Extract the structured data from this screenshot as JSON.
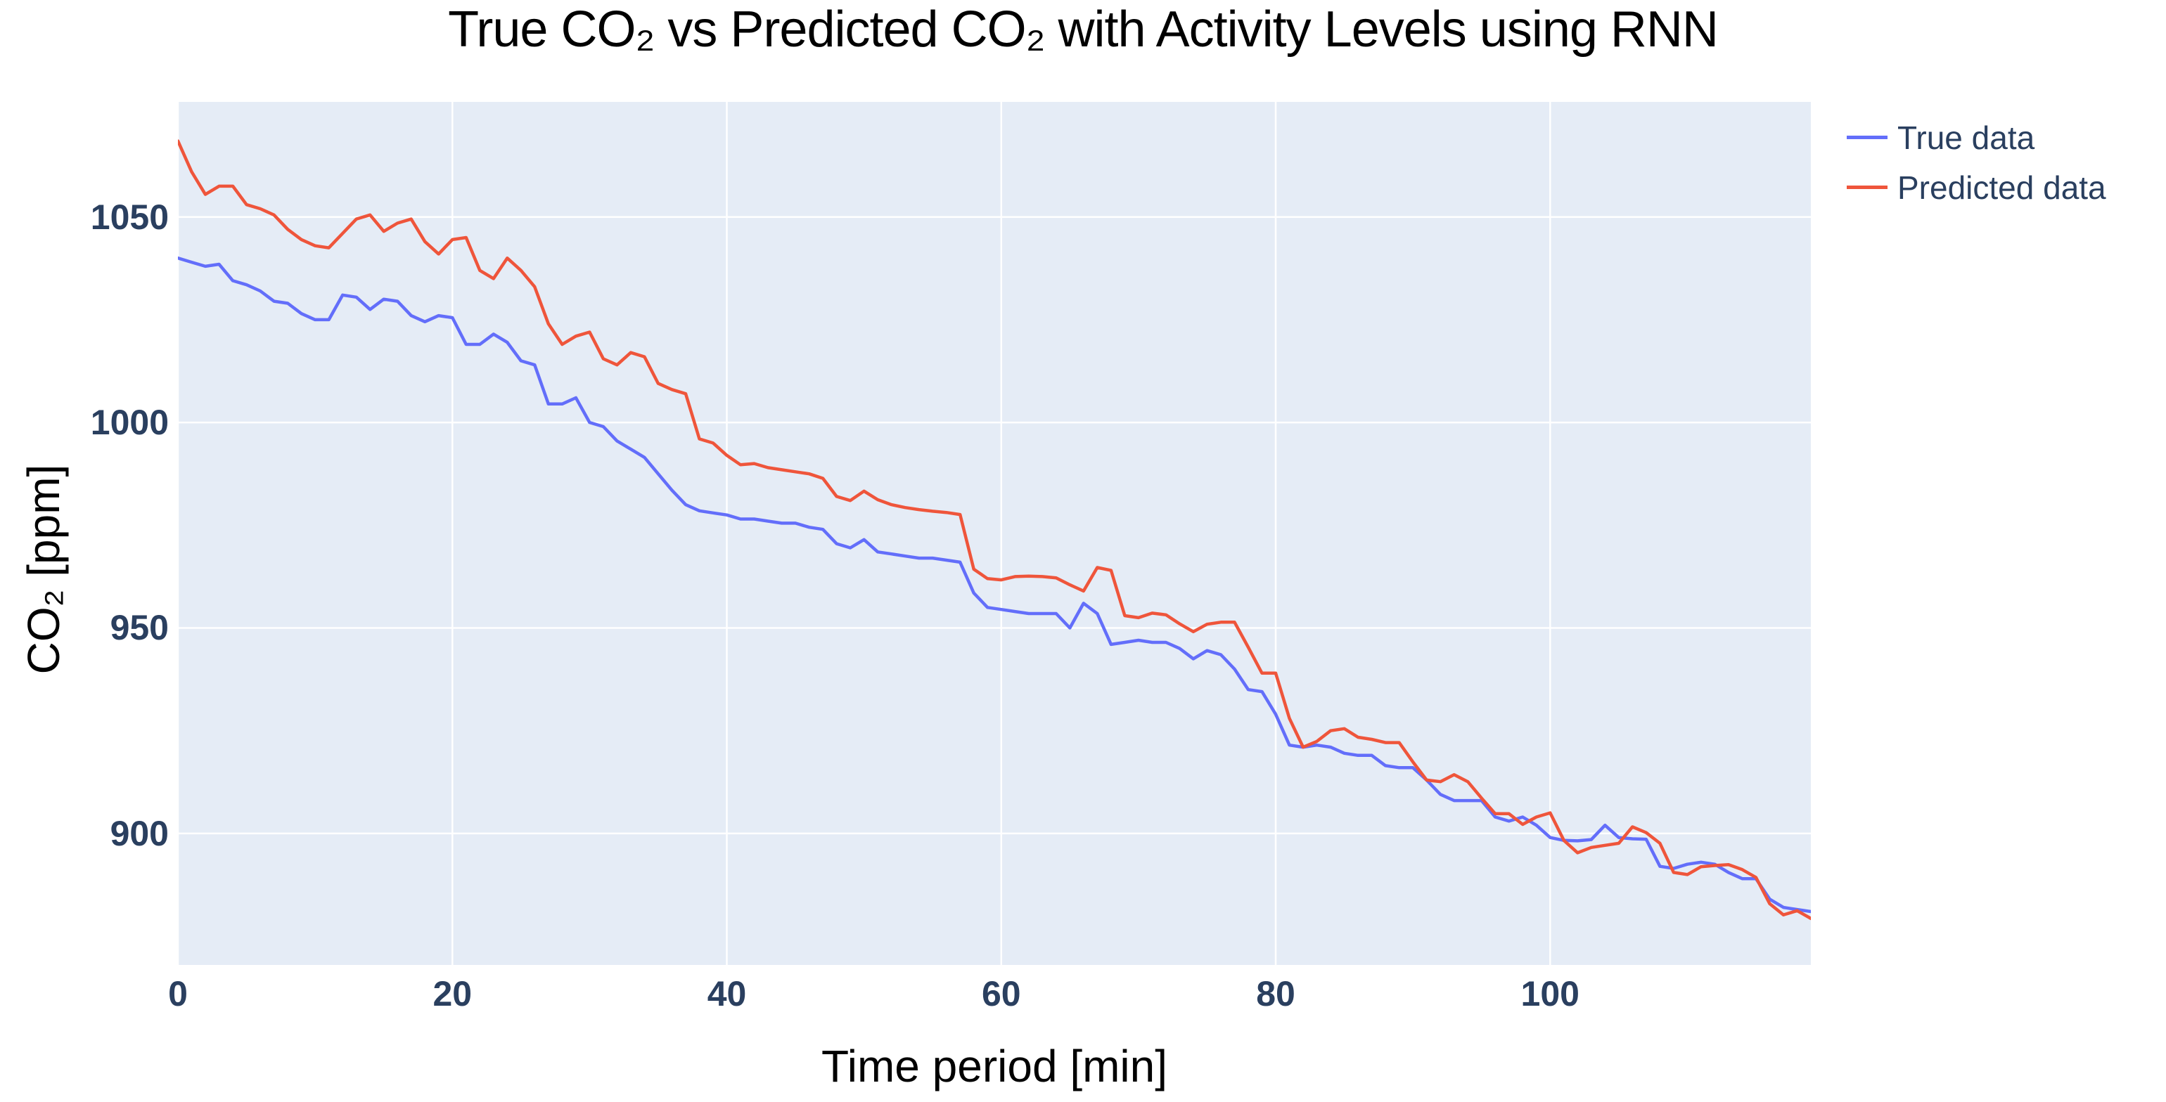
{
  "title": "True CO₂ vs Predicted CO₂ with Activity Levels using RNN",
  "colors": {
    "plot_bg": "#E5ECF6",
    "grid": "#FFFFFF",
    "tick_text": "#2A3F5F",
    "legend_text": "#2A3F5F",
    "title_text": "#000000",
    "true_line": "#636EFA",
    "predicted_line": "#EF553B"
  },
  "legend": {
    "position": "top-right-outside",
    "items": [
      {
        "label": "True data",
        "color": "#636EFA"
      },
      {
        "label": "Predicted data",
        "color": "#EF553B"
      }
    ]
  },
  "chart_data": {
    "type": "line",
    "title": "True CO₂ vs Predicted CO₂ with Activity Levels using RNN",
    "xlabel": "Time period [min]",
    "ylabel": "CO₂ [ppm]",
    "xlim": [
      0,
      119
    ],
    "ylim": [
      868,
      1078
    ],
    "xticks": [
      0,
      20,
      40,
      60,
      80,
      100
    ],
    "yticks": [
      900,
      950,
      1000,
      1050
    ],
    "grid": true,
    "legend_position": "top-right-outside",
    "x": [
      0,
      1,
      2,
      3,
      4,
      5,
      6,
      7,
      8,
      9,
      10,
      11,
      12,
      13,
      14,
      15,
      16,
      17,
      18,
      19,
      20,
      21,
      22,
      23,
      24,
      25,
      26,
      27,
      28,
      29,
      30,
      31,
      32,
      33,
      34,
      35,
      36,
      37,
      38,
      39,
      40,
      41,
      42,
      43,
      44,
      45,
      46,
      47,
      48,
      49,
      50,
      51,
      52,
      53,
      54,
      55,
      56,
      57,
      58,
      59,
      60,
      61,
      62,
      63,
      64,
      65,
      66,
      67,
      68,
      69,
      70,
      71,
      72,
      73,
      74,
      75,
      76,
      77,
      78,
      79,
      80,
      81,
      82,
      83,
      84,
      85,
      86,
      87,
      88,
      89,
      90,
      91,
      92,
      93,
      94,
      95,
      96,
      97,
      98,
      99,
      100,
      101,
      102,
      103,
      104,
      105,
      106,
      107,
      108,
      109,
      110,
      111,
      112,
      113,
      114,
      115,
      116,
      117,
      118,
      119
    ],
    "series": [
      {
        "name": "True data",
        "color": "#636EFA",
        "values": [
          1040,
          1039,
          1038,
          1038.5,
          1034.5,
          1033.5,
          1032,
          1029.5,
          1029,
          1026.5,
          1025,
          1025,
          1031,
          1030.5,
          1027.5,
          1030,
          1029.5,
          1026,
          1024.5,
          1026,
          1025.5,
          1019,
          1019,
          1021.5,
          1019.5,
          1015,
          1014,
          1004.5,
          1004.5,
          1006,
          1000,
          999,
          995.5,
          993.5,
          991.5,
          987.5,
          983.5,
          980,
          978.5,
          978,
          977.5,
          976.5,
          976.5,
          976,
          975.5,
          975.5,
          974.5,
          974,
          970.5,
          969.5,
          971.5,
          968.5,
          968,
          967.5,
          967,
          967,
          966.5,
          966,
          958.5,
          955,
          954.5,
          954,
          953.5,
          953.5,
          953.5,
          950,
          956,
          953.5,
          946,
          946.5,
          947,
          946.5,
          946.5,
          945,
          942.5,
          944.5,
          943.5,
          940,
          935,
          934.5,
          929,
          921.5,
          921,
          921.5,
          921,
          919.5,
          919,
          919,
          916.5,
          916,
          916,
          913,
          909.5,
          908,
          908,
          908,
          904,
          903,
          904,
          902,
          899,
          898.3,
          898.2,
          898.5,
          902,
          899,
          898.7,
          898.6,
          892,
          891.5,
          892.5,
          893,
          892.5,
          890.5,
          889,
          889,
          884,
          882,
          881.5,
          881
        ]
      },
      {
        "name": "Predicted data",
        "color": "#EF553B",
        "values": [
          1068.5,
          1061,
          1055.5,
          1057.5,
          1057.5,
          1053,
          1052,
          1050.5,
          1047,
          1044.5,
          1043,
          1042.5,
          1046,
          1049.5,
          1050.5,
          1046.5,
          1048.5,
          1049.5,
          1044,
          1041,
          1044.5,
          1045,
          1037,
          1035,
          1040,
          1037,
          1033,
          1024,
          1019,
          1021,
          1022,
          1015.5,
          1014,
          1017,
          1016,
          1009.5,
          1008,
          1007,
          996,
          995,
          992,
          989.7,
          990,
          989,
          988.5,
          988,
          987.5,
          986.4,
          982,
          981,
          983.3,
          981.2,
          980,
          979.3,
          978.8,
          978.4,
          978.1,
          977.6,
          964.3,
          962,
          961.7,
          962.5,
          962.6,
          962.5,
          962.2,
          960.5,
          959,
          964.7,
          964,
          953,
          952.5,
          953.6,
          953.2,
          951,
          949.1,
          950.9,
          951.4,
          951.4,
          945.3,
          939,
          939,
          928,
          921,
          922.4,
          925,
          925.5,
          923.4,
          922.9,
          922.1,
          922.1,
          917.4,
          913,
          912.6,
          914.3,
          912.6,
          908.6,
          904.8,
          904.8,
          902.2,
          904,
          905,
          898.3,
          895.3,
          896.6,
          897.1,
          897.6,
          901.6,
          900.2,
          897.6,
          890.5,
          890,
          891.9,
          892.2,
          892.4,
          891.2,
          889.3,
          882.9,
          880.2,
          881.2,
          879.3
        ]
      }
    ]
  }
}
